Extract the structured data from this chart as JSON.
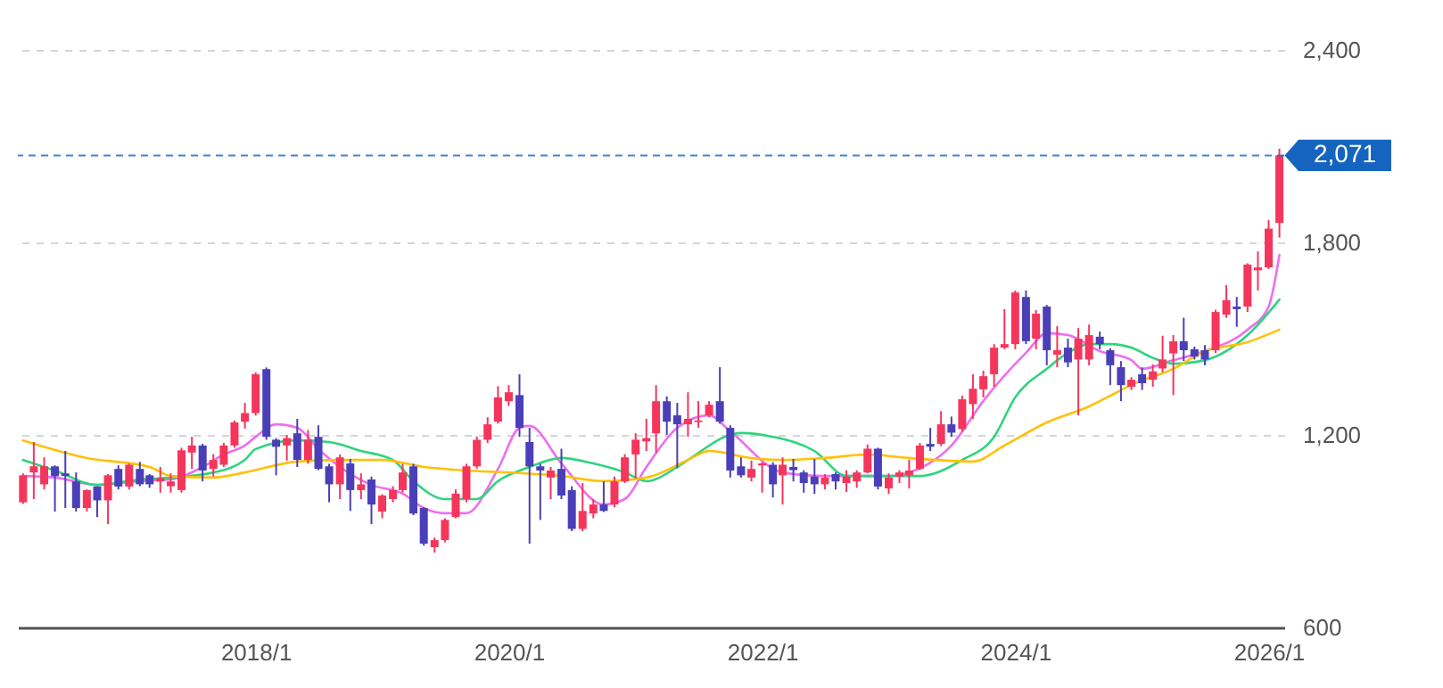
{
  "chart_data": {
    "type": "candlestick",
    "x": [
      "2016-03",
      "2016-04",
      "2016-05",
      "2016-06",
      "2016-07",
      "2016-08",
      "2016-09",
      "2016-10",
      "2016-11",
      "2016-12",
      "2017-01",
      "2017-02",
      "2017-03",
      "2017-04",
      "2017-05",
      "2017-06",
      "2017-07",
      "2017-08",
      "2017-09",
      "2017-10",
      "2017-11",
      "2017-12",
      "2018-01",
      "2018-02",
      "2018-03",
      "2018-04",
      "2018-05",
      "2018-06",
      "2018-07",
      "2018-08",
      "2018-09",
      "2018-10",
      "2018-11",
      "2018-12",
      "2019-01",
      "2019-02",
      "2019-03",
      "2019-04",
      "2019-05",
      "2019-06",
      "2019-07",
      "2019-08",
      "2019-09",
      "2019-10",
      "2019-11",
      "2019-12",
      "2020-01",
      "2020-02",
      "2020-03",
      "2020-04",
      "2020-05",
      "2020-06",
      "2020-07",
      "2020-08",
      "2020-09",
      "2020-10",
      "2020-11",
      "2020-12",
      "2021-01",
      "2021-02",
      "2021-03",
      "2021-04",
      "2021-05",
      "2021-06",
      "2021-07",
      "2021-08",
      "2021-09",
      "2021-10",
      "2021-11",
      "2021-12",
      "2022-01",
      "2022-02",
      "2022-03",
      "2022-04",
      "2022-05",
      "2022-06",
      "2022-07",
      "2022-08",
      "2022-09",
      "2022-10",
      "2022-11",
      "2022-12",
      "2023-01",
      "2023-02",
      "2023-03",
      "2023-04",
      "2023-05",
      "2023-06",
      "2023-07",
      "2023-08",
      "2023-09",
      "2023-10",
      "2023-11",
      "2023-12",
      "2024-01",
      "2024-02",
      "2024-03",
      "2024-04",
      "2024-05",
      "2024-06",
      "2024-07",
      "2024-08",
      "2024-09",
      "2024-10",
      "2024-11",
      "2024-12",
      "2025-01",
      "2025-02",
      "2025-03",
      "2025-04",
      "2025-05",
      "2025-06",
      "2025-07",
      "2025-08",
      "2025-09",
      "2025-10",
      "2025-11",
      "2025-12",
      "2026-01",
      "2026-02"
    ],
    "ohlc": [
      [
        990,
        1080,
        985,
        1074
      ],
      [
        1083,
        1178,
        1000,
        1102
      ],
      [
        1046,
        1130,
        1030,
        1102
      ],
      [
        1102,
        1105,
        961,
        1071
      ],
      [
        1080,
        1150,
        972,
        1072
      ],
      [
        1055,
        1083,
        961,
        972
      ],
      [
        972,
        1030,
        961,
        1028
      ],
      [
        1039,
        1040,
        944,
        996
      ],
      [
        996,
        1078,
        922,
        1074
      ],
      [
        1094,
        1105,
        1030,
        1039
      ],
      [
        1039,
        1111,
        1030,
        1107
      ],
      [
        1094,
        1116,
        1040,
        1046
      ],
      [
        1074,
        1078,
        1035,
        1046
      ],
      [
        1055,
        1100,
        1020,
        1065
      ],
      [
        1040,
        1080,
        1020,
        1055
      ],
      [
        1028,
        1160,
        1020,
        1152
      ],
      [
        1145,
        1194,
        1094,
        1167
      ],
      [
        1167,
        1172,
        1055,
        1089
      ],
      [
        1094,
        1140,
        1070,
        1122
      ],
      [
        1107,
        1175,
        1100,
        1167
      ],
      [
        1167,
        1245,
        1160,
        1239
      ],
      [
        1241,
        1300,
        1220,
        1268
      ],
      [
        1268,
        1395,
        1260,
        1389
      ],
      [
        1405,
        1410,
        1185,
        1194
      ],
      [
        1185,
        1190,
        1074,
        1163
      ],
      [
        1167,
        1200,
        1120,
        1190
      ],
      [
        1205,
        1250,
        1100,
        1122
      ],
      [
        1122,
        1215,
        1110,
        1185
      ],
      [
        1194,
        1230,
        1090,
        1094
      ],
      [
        1102,
        1110,
        990,
        1046
      ],
      [
        1046,
        1139,
        1000,
        1130
      ],
      [
        1111,
        1125,
        963,
        1028
      ],
      [
        1028,
        1080,
        1000,
        1046
      ],
      [
        1061,
        1070,
        922,
        983
      ],
      [
        961,
        1015,
        940,
        1011
      ],
      [
        1000,
        1040,
        990,
        1028
      ],
      [
        1028,
        1110,
        1020,
        1083
      ],
      [
        1102,
        1110,
        950,
        955
      ],
      [
        972,
        975,
        855,
        861
      ],
      [
        850,
        880,
        833,
        872
      ],
      [
        872,
        940,
        865,
        935
      ],
      [
        944,
        1030,
        940,
        1017
      ],
      [
        1000,
        1110,
        990,
        1102
      ],
      [
        1102,
        1195,
        1095,
        1185
      ],
      [
        1185,
        1255,
        1175,
        1233
      ],
      [
        1241,
        1352,
        1235,
        1317
      ],
      [
        1305,
        1355,
        1290,
        1333
      ],
      [
        1324,
        1389,
        1194,
        1222
      ],
      [
        1178,
        1222,
        861,
        1102
      ],
      [
        1102,
        1110,
        935,
        1089
      ],
      [
        1067,
        1100,
        1000,
        1089
      ],
      [
        1094,
        1157,
        1000,
        1011
      ],
      [
        1028,
        1040,
        900,
        907
      ],
      [
        907,
        1050,
        900,
        963
      ],
      [
        955,
        1000,
        940,
        983
      ],
      [
        983,
        1055,
        960,
        963
      ],
      [
        983,
        1070,
        975,
        1055
      ],
      [
        1055,
        1140,
        1050,
        1130
      ],
      [
        1139,
        1205,
        1065,
        1185
      ],
      [
        1180,
        1250,
        1150,
        1190
      ],
      [
        1205,
        1355,
        1145,
        1305
      ],
      [
        1305,
        1320,
        1200,
        1241
      ],
      [
        1261,
        1300,
        1096,
        1233
      ],
      [
        1233,
        1333,
        1194,
        1250
      ],
      [
        1240,
        1305,
        1222,
        1245
      ],
      [
        1261,
        1305,
        1255,
        1294
      ],
      [
        1305,
        1411,
        1235,
        1241
      ],
      [
        1222,
        1230,
        1067,
        1089
      ],
      [
        1102,
        1130,
        1067,
        1074
      ],
      [
        1067,
        1120,
        1055,
        1094
      ],
      [
        1105,
        1115,
        1020,
        1111
      ],
      [
        1107,
        1115,
        1005,
        1046
      ],
      [
        1074,
        1130,
        983,
        1107
      ],
      [
        1100,
        1125,
        1055,
        1090
      ],
      [
        1083,
        1090,
        1020,
        1050
      ],
      [
        1070,
        1125,
        1016,
        1046
      ],
      [
        1046,
        1078,
        1030,
        1067
      ],
      [
        1078,
        1083,
        1030,
        1055
      ],
      [
        1050,
        1090,
        1022,
        1070
      ],
      [
        1055,
        1090,
        1035,
        1083
      ],
      [
        1083,
        1170,
        1080,
        1157
      ],
      [
        1157,
        1160,
        1030,
        1039
      ],
      [
        1033,
        1080,
        1016,
        1067
      ],
      [
        1070,
        1090,
        1050,
        1083
      ],
      [
        1074,
        1122,
        1033,
        1089
      ],
      [
        1094,
        1175,
        1090,
        1167
      ],
      [
        1172,
        1222,
        1150,
        1163
      ],
      [
        1172,
        1274,
        1165,
        1233
      ],
      [
        1233,
        1257,
        1194,
        1207
      ],
      [
        1218,
        1322,
        1210,
        1311
      ],
      [
        1296,
        1389,
        1250,
        1344
      ],
      [
        1342,
        1400,
        1317,
        1383
      ],
      [
        1389,
        1483,
        1350,
        1472
      ],
      [
        1472,
        1592,
        1467,
        1483
      ],
      [
        1483,
        1650,
        1467,
        1644
      ],
      [
        1630,
        1650,
        1483,
        1492
      ],
      [
        1500,
        1589,
        1467,
        1578
      ],
      [
        1600,
        1605,
        1417,
        1464
      ],
      [
        1450,
        1539,
        1411,
        1464
      ],
      [
        1472,
        1500,
        1411,
        1426
      ],
      [
        1435,
        1533,
        1261,
        1500
      ],
      [
        1435,
        1544,
        1417,
        1511
      ],
      [
        1506,
        1522,
        1467,
        1483
      ],
      [
        1464,
        1470,
        1355,
        1417
      ],
      [
        1411,
        1430,
        1305,
        1355
      ],
      [
        1350,
        1380,
        1340,
        1372
      ],
      [
        1389,
        1410,
        1340,
        1361
      ],
      [
        1372,
        1420,
        1350,
        1398
      ],
      [
        1407,
        1509,
        1395,
        1435
      ],
      [
        1454,
        1511,
        1324,
        1492
      ],
      [
        1492,
        1565,
        1430,
        1464
      ],
      [
        1467,
        1475,
        1435,
        1444
      ],
      [
        1464,
        1480,
        1417,
        1435
      ],
      [
        1464,
        1590,
        1455,
        1583
      ],
      [
        1575,
        1667,
        1565,
        1620
      ],
      [
        1600,
        1630,
        1537,
        1592
      ],
      [
        1600,
        1735,
        1583,
        1731
      ],
      [
        1713,
        1772,
        1650,
        1722
      ],
      [
        1722,
        1870,
        1717,
        1843
      ],
      [
        1861,
        2092,
        1815,
        2071
      ]
    ],
    "colors": [
      "#f5365c",
      "#f5365c",
      "#f5365c",
      "#4a3fb8",
      "#4a3fb8",
      "#4a3fb8",
      "#f5365c",
      "#4a3fb8",
      "#f5365c",
      "#4a3fb8",
      "#f5365c",
      "#4a3fb8",
      "#4a3fb8",
      "#f5365c",
      "#f5365c",
      "#f5365c",
      "#f5365c",
      "#4a3fb8",
      "#f5365c",
      "#f5365c",
      "#f5365c",
      "#f5365c",
      "#f5365c",
      "#4a3fb8",
      "#4a3fb8",
      "#f5365c",
      "#4a3fb8",
      "#f5365c",
      "#4a3fb8",
      "#4a3fb8",
      "#f5365c",
      "#4a3fb8",
      "#f5365c",
      "#4a3fb8",
      "#f5365c",
      "#f5365c",
      "#f5365c",
      "#4a3fb8",
      "#4a3fb8",
      "#f5365c",
      "#f5365c",
      "#f5365c",
      "#f5365c",
      "#f5365c",
      "#f5365c",
      "#f5365c",
      "#f5365c",
      "#4a3fb8",
      "#4a3fb8",
      "#4a3fb8",
      "#f5365c",
      "#4a3fb8",
      "#4a3fb8",
      "#f5365c",
      "#f5365c",
      "#4a3fb8",
      "#f5365c",
      "#f5365c",
      "#f5365c",
      "#f5365c",
      "#f5365c",
      "#4a3fb8",
      "#4a3fb8",
      "#f5365c",
      "#f5365c",
      "#f5365c",
      "#4a3fb8",
      "#4a3fb8",
      "#4a3fb8",
      "#f5365c",
      "#f5365c",
      "#4a3fb8",
      "#f5365c",
      "#4a3fb8",
      "#4a3fb8",
      "#4a3fb8",
      "#f5365c",
      "#4a3fb8",
      "#f5365c",
      "#f5365c",
      "#f5365c",
      "#4a3fb8",
      "#f5365c",
      "#f5365c",
      "#f5365c",
      "#f5365c",
      "#4a3fb8",
      "#f5365c",
      "#4a3fb8",
      "#f5365c",
      "#f5365c",
      "#f5365c",
      "#f5365c",
      "#f5365c",
      "#f5365c",
      "#4a3fb8",
      "#f5365c",
      "#4a3fb8",
      "#f5365c",
      "#4a3fb8",
      "#f5365c",
      "#f5365c",
      "#4a3fb8",
      "#4a3fb8",
      "#4a3fb8",
      "#f5365c",
      "#4a3fb8",
      "#f5365c",
      "#f5365c",
      "#f5365c",
      "#4a3fb8",
      "#4a3fb8",
      "#4a3fb8",
      "#f5365c",
      "#f5365c",
      "#4a3fb8",
      "#f5365c",
      "#f5365c",
      "#f5365c",
      "#f5365c"
    ],
    "series": [
      {
        "type": "line",
        "color": "#ee6ef0",
        "x": [
          "2016-03",
          "2016-06",
          "2016-10",
          "2017-02",
          "2017-05",
          "2017-08",
          "2017-10",
          "2017-12",
          "2018-01",
          "2018-03",
          "2018-05",
          "2018-07",
          "2018-09",
          "2018-12",
          "2019-03",
          "2019-05",
          "2019-07",
          "2019-09",
          "2019-12",
          "2020-02",
          "2020-03",
          "2020-06",
          "2020-10",
          "2020-12",
          "2021-02",
          "2021-05",
          "2021-08",
          "2021-10",
          "2022-03",
          "2022-07",
          "2022-10",
          "2023-01",
          "2023-03",
          "2023-07",
          "2023-10",
          "2024-02",
          "2024-04",
          "2024-06",
          "2024-09",
          "2024-12",
          "2025-01",
          "2025-04",
          "2025-07",
          "2025-11",
          "2026-01",
          "2026-02"
        ],
        "values": [
          1072,
          1067,
          1044,
          1056,
          1061,
          1100,
          1139,
          1167,
          1194,
          1233,
          1222,
          1156,
          1100,
          1044,
          1017,
          972,
          956,
          956,
          1094,
          1222,
          1228,
          1111,
          983,
          1000,
          1100,
          1222,
          1261,
          1211,
          1083,
          1072,
          1072,
          1072,
          1083,
          1167,
          1306,
          1456,
          1517,
          1511,
          1461,
          1433,
          1406,
          1433,
          1461,
          1528,
          1600,
          1761
        ]
      },
      {
        "type": "line",
        "color": "#2fd47c",
        "x": [
          "2016-03",
          "2016-06",
          "2016-10",
          "2017-02",
          "2017-05",
          "2017-09",
          "2017-12",
          "2018-01",
          "2018-05",
          "2018-08",
          "2018-11",
          "2019-02",
          "2019-04",
          "2019-07",
          "2019-10",
          "2019-12",
          "2020-03",
          "2020-06",
          "2020-09",
          "2020-12",
          "2021-02",
          "2021-05",
          "2021-06",
          "2021-11",
          "2022-02",
          "2022-06",
          "2022-09",
          "2022-12",
          "2023-04",
          "2023-08",
          "2023-11",
          "2024-01",
          "2024-04",
          "2024-06",
          "2024-08",
          "2024-10",
          "2024-12",
          "2025-02",
          "2025-04",
          "2025-07",
          "2025-11",
          "2026-02"
        ],
        "values": [
          1122,
          1089,
          1044,
          1061,
          1067,
          1083,
          1122,
          1156,
          1183,
          1178,
          1150,
          1122,
          1056,
          1000,
          1000,
          1056,
          1100,
          1128,
          1111,
          1083,
          1056,
          1100,
          1122,
          1206,
          1194,
          1150,
          1072,
          1072,
          1072,
          1122,
          1194,
          1317,
          1406,
          1456,
          1483,
          1483,
          1472,
          1440,
          1422,
          1433,
          1511,
          1622
        ]
      },
      {
        "type": "line",
        "color": "#ffc107",
        "x": [
          "2016-03",
          "2016-09",
          "2017-03",
          "2017-05",
          "2017-09",
          "2017-12",
          "2018-05",
          "2018-09",
          "2019-01",
          "2019-05",
          "2019-09",
          "2020-01",
          "2020-06",
          "2020-10",
          "2021-02",
          "2021-06",
          "2021-08",
          "2021-12",
          "2022-03",
          "2022-07",
          "2022-11",
          "2023-03",
          "2023-09",
          "2023-12",
          "2024-04",
          "2024-08",
          "2024-10",
          "2024-12",
          "2025-04",
          "2025-07",
          "2025-11",
          "2026-02"
        ],
        "values": [
          1183,
          1128,
          1100,
          1072,
          1067,
          1083,
          1117,
          1122,
          1122,
          1100,
          1089,
          1083,
          1072,
          1056,
          1067,
          1122,
          1150,
          1128,
          1122,
          1128,
          1139,
          1128,
          1117,
          1167,
          1239,
          1289,
          1322,
          1356,
          1406,
          1461,
          1489,
          1528
        ]
      }
    ],
    "xlim": [
      "2016-02-15",
      "2026-02-15"
    ],
    "xticks": [
      {
        "value": "2018-01",
        "label": "2018/1"
      },
      {
        "value": "2020-01",
        "label": "2020/1"
      },
      {
        "value": "2022-01",
        "label": "2022/1"
      },
      {
        "value": "2024-01",
        "label": "2024/1"
      },
      {
        "value": "2026-01",
        "label": "2026/1"
      }
    ],
    "ylim": [
      600,
      2400
    ],
    "yticks": [
      600,
      {
        "value": 1200,
        "label": "1,200"
      },
      {
        "value": 1800,
        "label": "1,800"
      },
      {
        "value": 2400,
        "label": "2,400"
      }
    ],
    "grid": "y",
    "ref_lines": [
      {
        "axis": "y",
        "value": 2071,
        "label": "2,071",
        "color": "#1565c0",
        "line_style": "dashed"
      }
    ]
  }
}
